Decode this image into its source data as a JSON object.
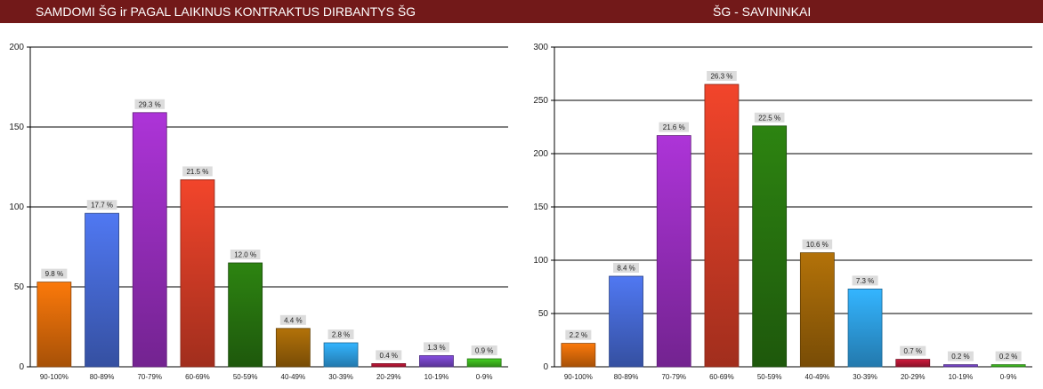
{
  "header": {
    "left_title": "SAMDOMI ŠG ir PAGAL LAIKINUS KONTRAKTUS DIRBANTYS ŠG",
    "right_title": "ŠG - SAVININKAI"
  },
  "chart_data": [
    {
      "type": "bar",
      "title": "SAMDOMI ŠG ir PAGAL LAIKINUS KONTRAKTUS DIRBANTYS ŠG",
      "categories": [
        "90-100%",
        "80-89%",
        "70-79%",
        "60-69%",
        "50-59%",
        "40-49%",
        "30-39%",
        "20-29%",
        "10-19%",
        "0-9%"
      ],
      "values": [
        53,
        96,
        159,
        117,
        65,
        24,
        15,
        2,
        7,
        5
      ],
      "data_labels": [
        "9.8 %",
        "17.7 %",
        "29.3 %",
        "21.5 %",
        "12.0 %",
        "4.4 %",
        "2.8 %",
        "0.4 %",
        "1.3 %",
        "0.9 %"
      ],
      "yticks": [
        0,
        50,
        100,
        150,
        200
      ],
      "ylim": [
        0,
        200
      ],
      "grid": true,
      "colors": [
        "#e8700a",
        "#4a6fe0",
        "#a030c8",
        "#e04028",
        "#2a7a10",
        "#a66a08",
        "#30a8f0",
        "#c01838",
        "#7c48d0",
        "#40c020"
      ]
    },
    {
      "type": "bar",
      "title": "ŠG - SAVININKAI",
      "categories": [
        "90-100%",
        "80-89%",
        "70-79%",
        "60-69%",
        "50-59%",
        "40-49%",
        "30-39%",
        "20-29%",
        "10-19%",
        "0-9%"
      ],
      "values": [
        22,
        85,
        217,
        265,
        226,
        107,
        73,
        7,
        2,
        2
      ],
      "data_labels": [
        "2.2 %",
        "8.4 %",
        "21.6 %",
        "26.3 %",
        "22.5 %",
        "10.6 %",
        "7.3 %",
        "0.7 %",
        "0.2 %",
        "0.2 %"
      ],
      "yticks": [
        0,
        50,
        100,
        150,
        200,
        250,
        300
      ],
      "ylim": [
        0,
        300
      ],
      "grid": true,
      "colors": [
        "#e8700a",
        "#4a6fe0",
        "#a030c8",
        "#e04028",
        "#2a7a10",
        "#a66a08",
        "#30a8f0",
        "#c01838",
        "#7c48d0",
        "#40c020"
      ]
    }
  ]
}
